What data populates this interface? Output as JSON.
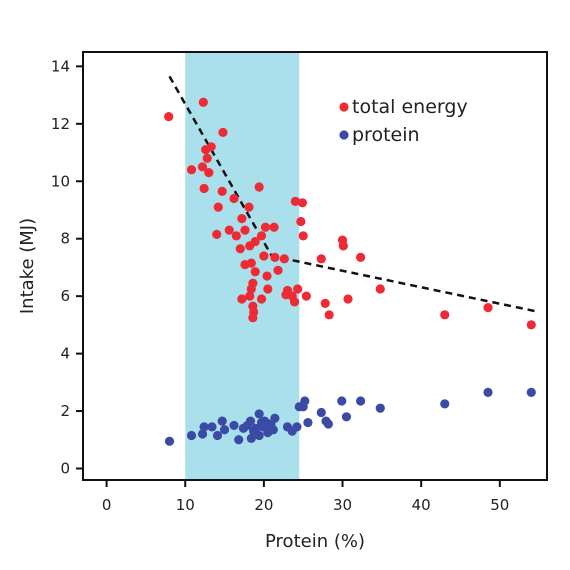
{
  "chart_data": {
    "type": "scatter",
    "xlabel": "Protein (%)",
    "ylabel": "Intake (MJ)",
    "xlim": [
      -3,
      56
    ],
    "ylim": [
      -0.4,
      14.5
    ],
    "xticks": [
      0,
      10,
      20,
      30,
      40,
      50
    ],
    "yticks": [
      0,
      2,
      4,
      6,
      8,
      10,
      12,
      14
    ],
    "grid": false,
    "legend_position": "top-right",
    "shaded_region": {
      "x": [
        10,
        24.5
      ],
      "color": "#a9e0ec"
    },
    "series": [
      {
        "name": "total energy",
        "color": "#ee2a35",
        "points": [
          [
            7.9,
            12.25
          ],
          [
            12.3,
            12.75
          ],
          [
            10.8,
            10.4
          ],
          [
            12.2,
            10.5
          ],
          [
            12.6,
            11.1
          ],
          [
            13.3,
            11.2
          ],
          [
            12.8,
            10.8
          ],
          [
            13.0,
            10.3
          ],
          [
            14.8,
            11.7
          ],
          [
            14.7,
            9.65
          ],
          [
            12.4,
            9.75
          ],
          [
            16.2,
            9.4
          ],
          [
            14.2,
            9.1
          ],
          [
            17.2,
            8.7
          ],
          [
            18.1,
            9.1
          ],
          [
            19.4,
            9.8
          ],
          [
            14.0,
            8.15
          ],
          [
            15.6,
            8.3
          ],
          [
            16.5,
            8.1
          ],
          [
            17.0,
            7.65
          ],
          [
            17.6,
            8.3
          ],
          [
            18.2,
            7.75
          ],
          [
            18.9,
            7.9
          ],
          [
            19.7,
            8.1
          ],
          [
            20.2,
            8.4
          ],
          [
            21.3,
            8.4
          ],
          [
            21.4,
            7.35
          ],
          [
            17.6,
            7.1
          ],
          [
            18.4,
            7.15
          ],
          [
            18.9,
            6.85
          ],
          [
            20.4,
            6.7
          ],
          [
            20.0,
            7.4
          ],
          [
            21.8,
            6.9
          ],
          [
            22.6,
            7.3
          ],
          [
            23.0,
            6.2
          ],
          [
            23.6,
            6.0
          ],
          [
            23.9,
            5.8
          ],
          [
            24.3,
            6.25
          ],
          [
            18.4,
            6.25
          ],
          [
            18.6,
            6.45
          ],
          [
            17.2,
            5.9
          ],
          [
            18.2,
            6.0
          ],
          [
            19.7,
            5.9
          ],
          [
            20.5,
            6.25
          ],
          [
            22.8,
            6.05
          ],
          [
            18.6,
            5.65
          ],
          [
            18.7,
            5.45
          ],
          [
            18.6,
            5.25
          ],
          [
            24.0,
            9.3
          ],
          [
            24.9,
            9.25
          ],
          [
            24.7,
            8.6
          ],
          [
            25.0,
            8.1
          ],
          [
            27.3,
            7.3
          ],
          [
            25.4,
            6.0
          ],
          [
            27.8,
            5.75
          ],
          [
            28.3,
            5.35
          ],
          [
            30.0,
            7.95
          ],
          [
            30.1,
            7.75
          ],
          [
            30.7,
            5.9
          ],
          [
            32.3,
            7.35
          ],
          [
            34.8,
            6.25
          ],
          [
            43.0,
            5.35
          ],
          [
            48.5,
            5.6
          ],
          [
            54.0,
            5.0
          ]
        ]
      },
      {
        "name": "protein",
        "color": "#3b4ba5",
        "points": [
          [
            8.0,
            0.95
          ],
          [
            10.8,
            1.15
          ],
          [
            12.4,
            1.45
          ],
          [
            12.2,
            1.2
          ],
          [
            13.4,
            1.45
          ],
          [
            14.1,
            1.15
          ],
          [
            14.7,
            1.65
          ],
          [
            15.0,
            1.35
          ],
          [
            16.2,
            1.5
          ],
          [
            16.8,
            1.0
          ],
          [
            17.4,
            1.4
          ],
          [
            17.9,
            1.5
          ],
          [
            18.4,
            1.05
          ],
          [
            18.7,
            1.3
          ],
          [
            19.0,
            1.4
          ],
          [
            19.4,
            1.15
          ],
          [
            19.4,
            1.9
          ],
          [
            19.9,
            1.45
          ],
          [
            20.1,
            1.65
          ],
          [
            20.5,
            1.25
          ],
          [
            20.9,
            1.55
          ],
          [
            21.4,
            1.75
          ],
          [
            18.3,
            1.65
          ],
          [
            19.7,
            1.6
          ],
          [
            20.3,
            1.45
          ],
          [
            21.2,
            1.35
          ],
          [
            23.0,
            1.45
          ],
          [
            23.6,
            1.3
          ],
          [
            24.2,
            1.45
          ],
          [
            24.5,
            2.15
          ],
          [
            25.2,
            2.35
          ],
          [
            25.0,
            2.15
          ],
          [
            25.6,
            1.6
          ],
          [
            27.3,
            1.95
          ],
          [
            27.9,
            1.65
          ],
          [
            28.2,
            1.55
          ],
          [
            29.9,
            2.35
          ],
          [
            30.5,
            1.8
          ],
          [
            32.3,
            2.35
          ],
          [
            34.8,
            2.1
          ],
          [
            43.0,
            2.25
          ],
          [
            48.5,
            2.65
          ],
          [
            54.0,
            2.65
          ]
        ]
      }
    ],
    "trend_line": {
      "style": "dashed",
      "color": "#111111",
      "points": [
        [
          8.0,
          13.65
        ],
        [
          21.0,
          7.4
        ],
        [
          55.0,
          5.45
        ]
      ]
    }
  }
}
